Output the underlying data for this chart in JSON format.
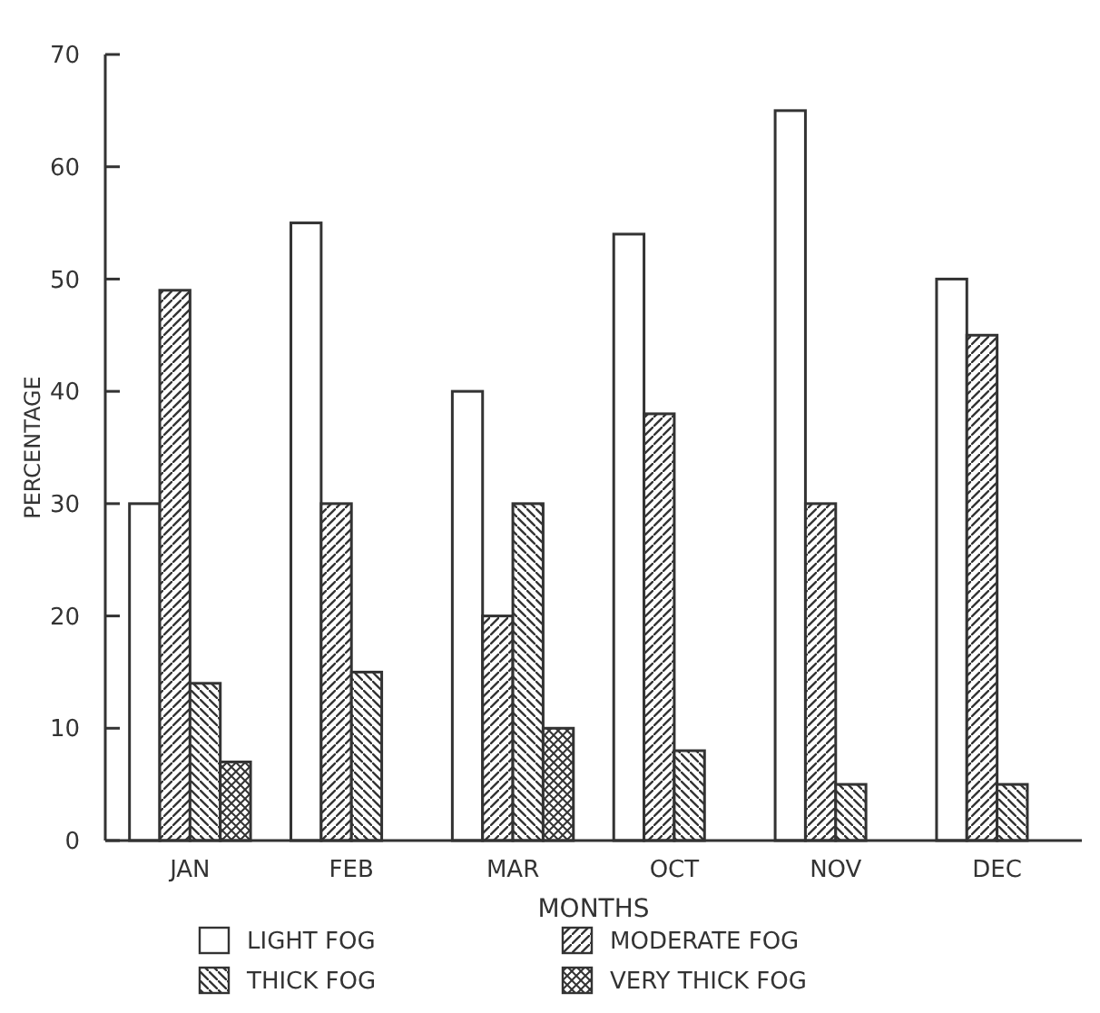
{
  "chart_data": {
    "type": "bar",
    "xlabel": "MONTHS",
    "ylabel": "PERCENTAGE",
    "categories": [
      "JAN",
      "FEB",
      "MAR",
      "OCT",
      "NOV",
      "DEC"
    ],
    "series": [
      {
        "name": "LIGHT FOG",
        "color": "#333333",
        "values": [
          30,
          55,
          40,
          54,
          65,
          50
        ]
      },
      {
        "name": "MODERATE FOG",
        "color": "#333333",
        "values": [
          49,
          30,
          20,
          38,
          30,
          45
        ]
      },
      {
        "name": "THICK FOG",
        "color": "#333333",
        "values": [
          14,
          15,
          30,
          8,
          5,
          5
        ]
      },
      {
        "name": "VERY THICK FOG",
        "color": "#333333",
        "values": [
          7,
          null,
          10,
          null,
          null,
          null
        ]
      }
    ],
    "ylim": [
      0,
      70
    ],
    "yticks": [
      0,
      10,
      20,
      30,
      40,
      50,
      60,
      70
    ],
    "legend": "bottom"
  }
}
